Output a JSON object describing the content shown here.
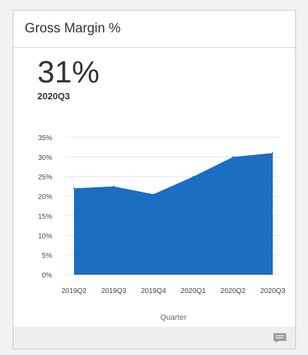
{
  "card": {
    "title": "Gross Margin %",
    "kpi_value": "31%",
    "kpi_period": "2020Q3"
  },
  "footer": {
    "icon": "comment-icon"
  },
  "colors": {
    "area_fill": "#1b6ec2",
    "grid": "#e3e3e3",
    "text": "#333333"
  },
  "chart_data": {
    "type": "area",
    "categories": [
      "2019Q2",
      "2019Q3",
      "2019Q4",
      "2020Q1",
      "2020Q2",
      "2020Q3"
    ],
    "series": [
      {
        "values": [
          22,
          22.5,
          20.5,
          25,
          30,
          31
        ]
      }
    ],
    "xlabel": "Quarter",
    "ylabel": "",
    "ylim": [
      0,
      35
    ],
    "yticks": [
      "0%",
      "5%",
      "10%",
      "15%",
      "20%",
      "25%",
      "30%",
      "35%"
    ],
    "ytick_values": [
      0,
      5,
      10,
      15,
      20,
      25,
      30,
      35
    ],
    "grid": true,
    "legend": "none"
  }
}
